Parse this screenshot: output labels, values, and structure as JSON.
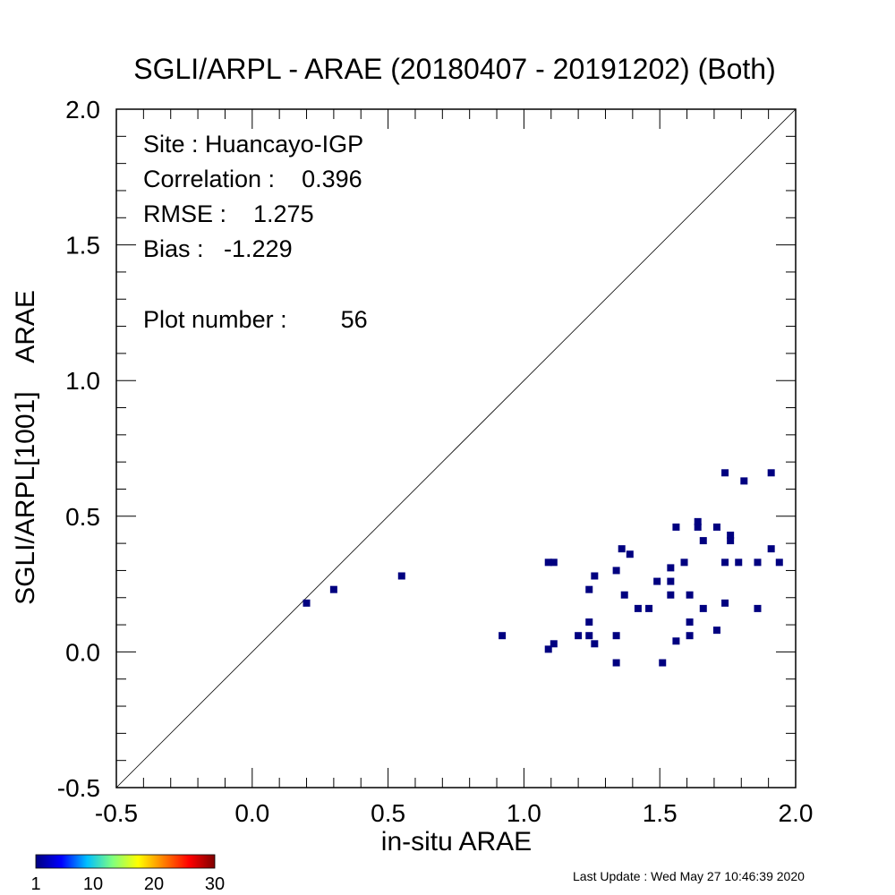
{
  "chart_data": {
    "type": "scatter",
    "title": "SGLI/ARPL - ARAE (20180407 - 20191202) (Both)",
    "xlabel": "in-situ ARAE",
    "ylabel": "SGLI/ARPL[1001]    ARAE",
    "xlim": [
      -0.5,
      2.0
    ],
    "ylim": [
      -0.5,
      2.0
    ],
    "x_ticks": [
      "-0.5",
      "0.0",
      "0.5",
      "1.0",
      "1.5",
      "2.0"
    ],
    "y_ticks": [
      "-0.5",
      "0.0",
      "0.5",
      "1.0",
      "1.5",
      "2.0"
    ],
    "one_to_one_line": true,
    "grid": false,
    "stats": {
      "site": "Site : Huancayo-IGP",
      "correlation": "Correlation :    0.396",
      "rmse": "RMSE :    1.275",
      "bias": "Bias :   -1.229",
      "plot_number": "Plot number :        56"
    },
    "colorbar": {
      "labels": [
        "1",
        "10",
        "20",
        "30"
      ],
      "colors": [
        "#00007f",
        "#0000ff",
        "#00bfff",
        "#7fff7f",
        "#ffff00",
        "#ff7f00",
        "#ff0000",
        "#7f0000"
      ]
    },
    "point_color": "#000080",
    "points": [
      {
        "x": 0.2,
        "y": 0.18
      },
      {
        "x": 0.3,
        "y": 0.23
      },
      {
        "x": 0.55,
        "y": 0.28
      },
      {
        "x": 0.92,
        "y": 0.06
      },
      {
        "x": 1.09,
        "y": 0.33
      },
      {
        "x": 1.11,
        "y": 0.33
      },
      {
        "x": 1.09,
        "y": 0.01
      },
      {
        "x": 1.11,
        "y": 0.03
      },
      {
        "x": 1.2,
        "y": 0.06
      },
      {
        "x": 1.24,
        "y": 0.23
      },
      {
        "x": 1.24,
        "y": 0.11
      },
      {
        "x": 1.24,
        "y": 0.06
      },
      {
        "x": 1.26,
        "y": 0.28
      },
      {
        "x": 1.26,
        "y": 0.03
      },
      {
        "x": 1.34,
        "y": 0.3
      },
      {
        "x": 1.34,
        "y": 0.06
      },
      {
        "x": 1.34,
        "y": -0.04
      },
      {
        "x": 1.36,
        "y": 0.38
      },
      {
        "x": 1.39,
        "y": 0.36
      },
      {
        "x": 1.37,
        "y": 0.21
      },
      {
        "x": 1.42,
        "y": 0.16
      },
      {
        "x": 1.46,
        "y": 0.16
      },
      {
        "x": 1.49,
        "y": 0.26
      },
      {
        "x": 1.51,
        "y": -0.04
      },
      {
        "x": 1.54,
        "y": 0.31
      },
      {
        "x": 1.54,
        "y": 0.26
      },
      {
        "x": 1.54,
        "y": 0.21
      },
      {
        "x": 1.56,
        "y": 0.46
      },
      {
        "x": 1.56,
        "y": 0.04
      },
      {
        "x": 1.59,
        "y": 0.33
      },
      {
        "x": 1.61,
        "y": 0.21
      },
      {
        "x": 1.61,
        "y": 0.11
      },
      {
        "x": 1.61,
        "y": 0.06
      },
      {
        "x": 1.64,
        "y": 0.48
      },
      {
        "x": 1.64,
        "y": 0.46
      },
      {
        "x": 1.66,
        "y": 0.41
      },
      {
        "x": 1.66,
        "y": 0.16
      },
      {
        "x": 1.71,
        "y": 0.46
      },
      {
        "x": 1.71,
        "y": 0.08
      },
      {
        "x": 1.74,
        "y": 0.66
      },
      {
        "x": 1.74,
        "y": 0.33
      },
      {
        "x": 1.74,
        "y": 0.18
      },
      {
        "x": 1.76,
        "y": 0.43
      },
      {
        "x": 1.76,
        "y": 0.41
      },
      {
        "x": 1.79,
        "y": 0.33
      },
      {
        "x": 1.81,
        "y": 0.63
      },
      {
        "x": 1.86,
        "y": 0.33
      },
      {
        "x": 1.86,
        "y": 0.16
      },
      {
        "x": 1.91,
        "y": 0.66
      },
      {
        "x": 1.91,
        "y": 0.38
      },
      {
        "x": 1.94,
        "y": 0.33
      }
    ],
    "footer": "Last Update : Wed May 27 10:46:39 2020"
  }
}
